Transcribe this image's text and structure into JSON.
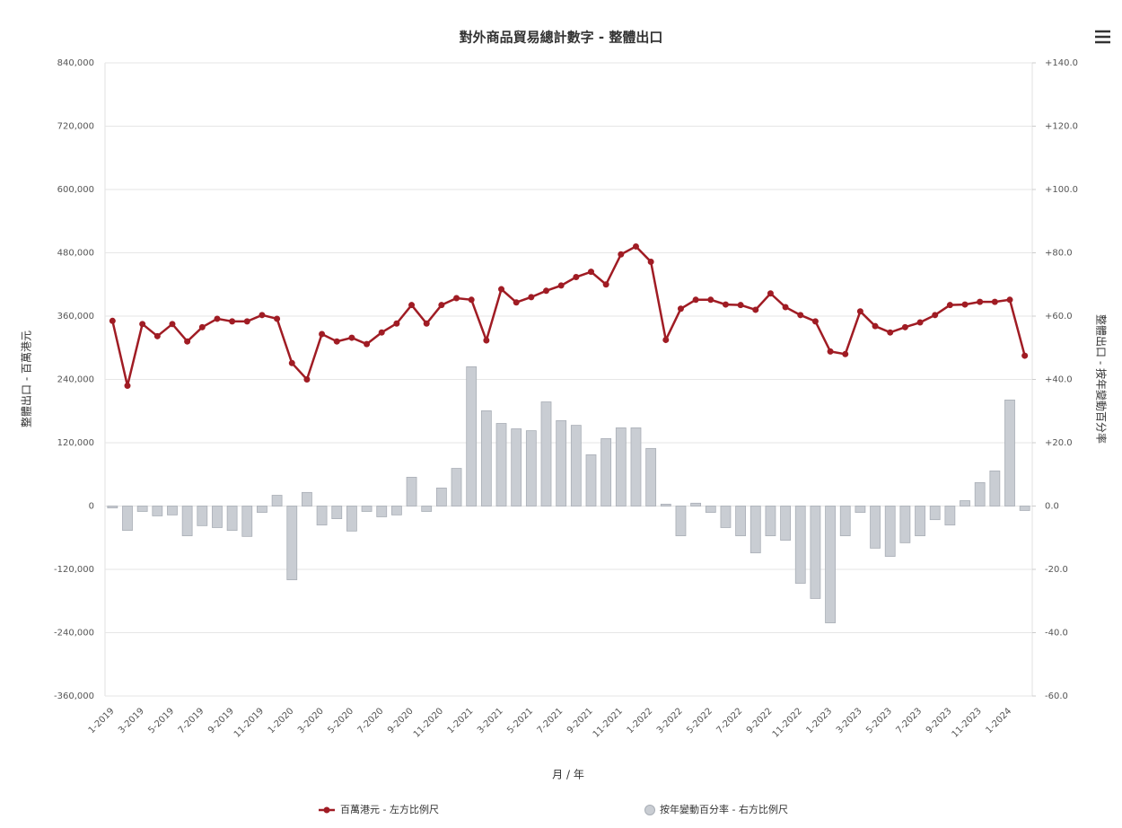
{
  "chart_data": {
    "type": "combo",
    "title": "對外商品貿易總計數字 - 整體出口",
    "x_label": "月 / 年",
    "y_label": "整體出口 - 百萬港元",
    "y2_label": "整體出口 - 按年變動百分率",
    "categories": [
      "1-2019",
      null,
      "3-2019",
      null,
      "5-2019",
      null,
      "7-2019",
      null,
      "9-2019",
      null,
      "11-2019",
      null,
      "1-2020",
      null,
      "3-2020",
      null,
      "5-2020",
      null,
      "7-2020",
      null,
      "9-2020",
      null,
      "11-2020",
      null,
      "1-2021",
      null,
      "3-2021",
      null,
      "5-2021",
      null,
      "7-2021",
      null,
      "9-2021",
      null,
      "11-2021",
      null,
      "1-2022",
      null,
      "3-2022",
      null,
      "5-2022",
      null,
      "7-2022",
      null,
      "9-2022",
      null,
      "11-2022",
      null,
      "1-2023",
      null,
      "3-2023",
      null,
      "5-2023",
      null,
      "7-2023",
      null,
      "9-2023",
      null,
      "11-2023",
      null,
      "1-2024",
      null
    ],
    "series": [
      {
        "name": "百萬港元 - 左方比例尺",
        "type": "line",
        "color": "#a01c24",
        "values": [
          351000,
          228000,
          345000,
          322000,
          345000,
          312000,
          339000,
          355000,
          350000,
          350000,
          362000,
          355000,
          271000,
          240000,
          326000,
          312000,
          319000,
          307000,
          329000,
          346000,
          381000,
          346000,
          381000,
          394000,
          391000,
          314000,
          411000,
          386000,
          396000,
          408000,
          418000,
          434000,
          444000,
          420000,
          477000,
          492000,
          463000,
          315000,
          374000,
          391000,
          391000,
          382000,
          381000,
          372000,
          403000,
          377000,
          362000,
          350000,
          293000,
          288000,
          369000,
          341000,
          329000,
          339000,
          348000,
          362000,
          381000,
          382000,
          387000,
          387000,
          391000,
          285000
        ]
      },
      {
        "name": "按年變動百分率 - 右方比例尺",
        "type": "bar",
        "axis": "y2",
        "color": "#c9cdd3",
        "values": [
          -0.6,
          -7.7,
          -1.7,
          -3.1,
          -2.8,
          -9.4,
          -6.2,
          -6.8,
          -7.7,
          -9.6,
          -2.0,
          3.4,
          -23.3,
          4.3,
          -6.0,
          -4.0,
          -7.9,
          -1.7,
          -3.4,
          -2.8,
          9.1,
          -1.7,
          5.7,
          11.9,
          44.0,
          30.1,
          26.1,
          24.4,
          23.8,
          32.9,
          27.0,
          25.5,
          16.2,
          21.3,
          24.7,
          24.7,
          18.2,
          0.6,
          -9.4,
          0.9,
          -2.0,
          -6.8,
          -9.4,
          -14.8,
          -9.4,
          -10.8,
          -24.4,
          -29.2,
          -36.9,
          -9.4,
          -2.0,
          -13.3,
          -15.9,
          -11.6,
          -9.4,
          -4.3,
          -6.0,
          1.7,
          7.4,
          11.1,
          33.5,
          -1.4
        ]
      }
    ],
    "ylim": [
      -360000,
      840000
    ],
    "yticks": [
      {
        "value": -360000,
        "label": "-360,000"
      },
      {
        "value": -240000,
        "label": "-240,000"
      },
      {
        "value": -120000,
        "label": "-120,000"
      },
      0,
      {
        "value": 120000,
        "label": "120,000"
      },
      {
        "value": 240000,
        "label": "240,000"
      },
      {
        "value": 360000,
        "label": "360,000"
      },
      {
        "value": 480000,
        "label": "480,000"
      },
      {
        "value": 600000,
        "label": "600,000"
      },
      {
        "value": 720000,
        "label": "720,000"
      },
      {
        "value": 840000,
        "label": "840,000"
      }
    ],
    "y2lim": [
      -60,
      140
    ],
    "y2ticks": [
      {
        "value": -60,
        "label": "-60.0"
      },
      {
        "value": -40,
        "label": "-40.0"
      },
      {
        "value": -20,
        "label": "-20.0"
      },
      {
        "value": 0,
        "label": "0.0"
      },
      {
        "value": 20,
        "label": "+20.0"
      },
      {
        "value": 40,
        "label": "+40.0"
      },
      {
        "value": 60,
        "label": "+60.0"
      },
      {
        "value": 80,
        "label": "+80.0"
      },
      {
        "value": 100,
        "label": "+100.0"
      },
      {
        "value": 120,
        "label": "+120.0"
      },
      {
        "value": 140,
        "label": "+140.0"
      }
    ],
    "grid": true
  }
}
